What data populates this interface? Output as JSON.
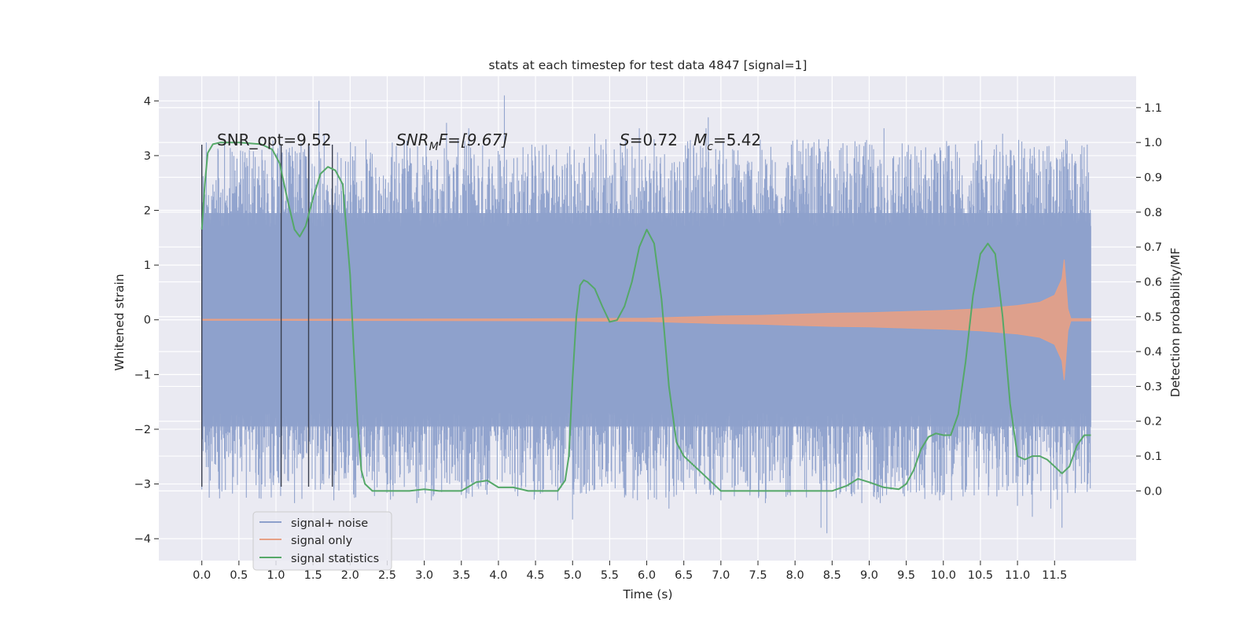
{
  "chart_data": {
    "type": "line",
    "title": "stats at each timestep for test data 4847 [signal=1]",
    "xlabel": "Time (s)",
    "ylabel_left": "Whitened strain",
    "ylabel_right": "Detection probability/MF",
    "xlim": [
      -0.58,
      12.6
    ],
    "ylim_left": [
      -4.4,
      4.45
    ],
    "ylim_right": [
      -0.2,
      1.19
    ],
    "x_ticks": [
      "0.0",
      "0.5",
      "1.0",
      "1.5",
      "2.0",
      "2.5",
      "3.0",
      "3.5",
      "4.0",
      "4.5",
      "5.0",
      "5.5",
      "6.0",
      "6.5",
      "7.0",
      "7.5",
      "8.0",
      "8.5",
      "9.0",
      "9.5",
      "10.0",
      "10.5",
      "11.0",
      "11.5"
    ],
    "x_tick_values": [
      0,
      0.5,
      1,
      1.5,
      2,
      2.5,
      3,
      3.5,
      4,
      4.5,
      5,
      5.5,
      6,
      6.5,
      7,
      7.5,
      8,
      8.5,
      9,
      9.5,
      10,
      10.5,
      11,
      11.5
    ],
    "y_left_ticks": [
      "4",
      "3",
      "2",
      "1",
      "0",
      "−1",
      "−2",
      "−3",
      "−4"
    ],
    "y_left_tick_values": [
      4,
      3,
      2,
      1,
      0,
      -1,
      -2,
      -3,
      -4
    ],
    "y_right_ticks": [
      "1.1",
      "1.0",
      "0.9",
      "0.8",
      "0.7",
      "0.6",
      "0.5",
      "0.4",
      "0.3",
      "0.2",
      "0.1",
      "0.0"
    ],
    "y_right_tick_values": [
      1.1,
      1.0,
      0.9,
      0.8,
      0.7,
      0.6,
      0.5,
      0.4,
      0.3,
      0.2,
      0.1,
      0.0
    ],
    "grid": true,
    "legend_position": "bottom-left",
    "annotations": {
      "snr_opt": "SNR_opt=9.52",
      "snr_mf_sym": "SNR",
      "snr_mf_sub": "M",
      "snr_mf_rest": "F=[9.67]",
      "s_sym": "S",
      "s_val": "=0.72",
      "mc_sym": "M",
      "mc_sub": "c",
      "mc_val": "=5.42"
    },
    "vertical_lines_x": [
      0.0,
      1.07,
      1.44,
      1.76
    ],
    "vertical_lines_range": [
      -3.05,
      3.2
    ],
    "series": [
      {
        "name": "signal+ noise",
        "color": "#8da0cb",
        "x_range": [
          0.0,
          11.99
        ],
        "core_band": [
          -1.95,
          1.95
        ],
        "peaks_up": [
          [
            0.0,
            2.4
          ],
          [
            0.15,
            2.2
          ],
          [
            0.95,
            2.6
          ],
          [
            1.2,
            2.8
          ],
          [
            1.58,
            4.0
          ],
          [
            1.65,
            3.4
          ],
          [
            3.3,
            3.6
          ],
          [
            3.6,
            3.5
          ],
          [
            4.08,
            4.1
          ],
          [
            4.45,
            3.2
          ],
          [
            5.3,
            3.4
          ],
          [
            5.45,
            3.3
          ],
          [
            5.9,
            3.5
          ],
          [
            6.1,
            3.3
          ],
          [
            6.8,
            3.5
          ],
          [
            6.83,
            3.7
          ],
          [
            7.95,
            3.2
          ],
          [
            8.45,
            3.3
          ],
          [
            8.6,
            3.1
          ],
          [
            9.2,
            3.5
          ],
          [
            9.7,
            3.1
          ],
          [
            10.0,
            2.9
          ],
          [
            10.8,
            3.4
          ],
          [
            11.2,
            3.0
          ],
          [
            11.65,
            3.3
          ],
          [
            11.78,
            2.9
          ]
        ],
        "peaks_down": [
          [
            0.1,
            -3.25
          ],
          [
            0.6,
            -3.0
          ],
          [
            1.25,
            -3.35
          ],
          [
            1.6,
            -3.1
          ],
          [
            1.78,
            -3.3
          ],
          [
            2.9,
            -3.35
          ],
          [
            3.5,
            -3.2
          ],
          [
            4.8,
            -3.3
          ],
          [
            5.0,
            -3.65
          ],
          [
            5.3,
            -3.1
          ],
          [
            6.3,
            -3.45
          ],
          [
            6.4,
            -3.2
          ],
          [
            7.0,
            -3.3
          ],
          [
            7.4,
            -3.1
          ],
          [
            7.6,
            -3.35
          ],
          [
            7.9,
            -3.2
          ],
          [
            8.35,
            -3.8
          ],
          [
            8.43,
            -3.9
          ],
          [
            8.9,
            -3.35
          ],
          [
            9.15,
            -3.35
          ],
          [
            9.95,
            -3.3
          ],
          [
            10.25,
            -3.1
          ],
          [
            11.0,
            -3.4
          ],
          [
            11.2,
            -3.6
          ],
          [
            11.45,
            -3.45
          ],
          [
            11.6,
            -3.8
          ],
          [
            11.95,
            -3.0
          ]
        ]
      },
      {
        "name": "signal only",
        "color": "#e7a085",
        "x": [
          0.0,
          1.0,
          2.0,
          3.0,
          4.0,
          5.0,
          6.0,
          6.5,
          7.0,
          7.5,
          8.0,
          8.5,
          9.0,
          9.5,
          10.0,
          10.5,
          11.0,
          11.3,
          11.5,
          11.6,
          11.63,
          11.68,
          11.72,
          11.99
        ],
        "amplitude": [
          0.01,
          0.01,
          0.012,
          0.014,
          0.017,
          0.02,
          0.03,
          0.05,
          0.07,
          0.08,
          0.1,
          0.12,
          0.13,
          0.15,
          0.17,
          0.2,
          0.26,
          0.32,
          0.45,
          0.75,
          1.1,
          0.2,
          0.02,
          0.02
        ]
      },
      {
        "name": "signal statistics",
        "color": "#55a868",
        "x": [
          0.0,
          0.04,
          0.08,
          0.15,
          0.25,
          0.5,
          0.8,
          0.95,
          1.05,
          1.15,
          1.25,
          1.32,
          1.4,
          1.5,
          1.6,
          1.7,
          1.8,
          1.9,
          2.0,
          2.05,
          2.1,
          2.15,
          2.2,
          2.3,
          2.5,
          2.8,
          3.0,
          3.2,
          3.5,
          3.7,
          3.85,
          4.0,
          4.2,
          4.4,
          4.6,
          4.8,
          4.9,
          4.95,
          5.0,
          5.05,
          5.1,
          5.15,
          5.2,
          5.3,
          5.4,
          5.5,
          5.6,
          5.7,
          5.8,
          5.9,
          6.0,
          6.1,
          6.2,
          6.3,
          6.4,
          6.5,
          6.7,
          6.9,
          7.0,
          7.2,
          7.5,
          8.0,
          8.5,
          8.7,
          8.85,
          9.0,
          9.2,
          9.4,
          9.5,
          9.6,
          9.7,
          9.8,
          9.9,
          10.0,
          10.1,
          10.2,
          10.3,
          10.4,
          10.5,
          10.6,
          10.7,
          10.8,
          10.9,
          11.0,
          11.1,
          11.2,
          11.3,
          11.4,
          11.5,
          11.6,
          11.7,
          11.8,
          11.9,
          11.99
        ],
        "y": [
          0.75,
          0.88,
          0.97,
          0.995,
          1.0,
          1.0,
          0.995,
          0.98,
          0.94,
          0.84,
          0.75,
          0.73,
          0.76,
          0.84,
          0.91,
          0.93,
          0.92,
          0.88,
          0.62,
          0.4,
          0.2,
          0.06,
          0.02,
          0.0,
          0.0,
          0.0,
          0.005,
          0.0,
          0.0,
          0.025,
          0.03,
          0.01,
          0.01,
          0.0,
          0.0,
          0.0,
          0.03,
          0.1,
          0.32,
          0.5,
          0.59,
          0.605,
          0.6,
          0.58,
          0.53,
          0.485,
          0.49,
          0.53,
          0.6,
          0.7,
          0.75,
          0.71,
          0.55,
          0.3,
          0.14,
          0.1,
          0.06,
          0.02,
          0.0,
          0.0,
          0.0,
          0.0,
          0.0,
          0.015,
          0.035,
          0.025,
          0.01,
          0.005,
          0.02,
          0.06,
          0.12,
          0.155,
          0.165,
          0.16,
          0.16,
          0.22,
          0.37,
          0.56,
          0.68,
          0.71,
          0.68,
          0.5,
          0.25,
          0.1,
          0.09,
          0.1,
          0.1,
          0.09,
          0.07,
          0.05,
          0.07,
          0.13,
          0.16,
          0.16
        ]
      }
    ]
  }
}
